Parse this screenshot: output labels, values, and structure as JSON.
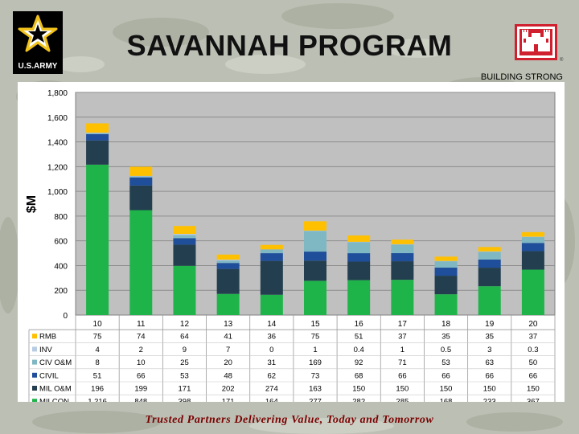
{
  "page": {
    "title": "SAVANNAH PROGRAM",
    "army_logo_text": "U.S.ARMY",
    "tagline": "BUILDING STRONG",
    "footer": "Trusted Partners Delivering Value, Today and Tomorrow",
    "reg_mark": "®"
  },
  "chart_data": {
    "type": "bar",
    "stacked": true,
    "ylabel": "$M",
    "ylim": [
      0,
      1800
    ],
    "yticks": [
      0,
      200,
      400,
      600,
      800,
      1000,
      1200,
      1400,
      1600,
      1800
    ],
    "ytick_labels": [
      "0",
      "200",
      "400",
      "600",
      "800",
      "1,000",
      "1,200",
      "1,400",
      "1,600",
      "1,800"
    ],
    "categories": [
      "10",
      "11",
      "12",
      "13",
      "14",
      "15",
      "16",
      "17",
      "18",
      "19",
      "20"
    ],
    "grid": true,
    "legend_placement": "data-table-left",
    "series": [
      {
        "name": "RMB",
        "color": "#ffc000",
        "values": [
          75,
          74,
          64,
          41,
          36,
          75,
          51,
          37,
          35,
          35,
          37
        ],
        "labels": [
          "75",
          "74",
          "64",
          "41",
          "36",
          "75",
          "51",
          "37",
          "35",
          "35",
          "37"
        ]
      },
      {
        "name": "INV",
        "color": "#b8cce4",
        "values": [
          4,
          2,
          9,
          7,
          0,
          1,
          0.4,
          1,
          0.5,
          3,
          0.3
        ],
        "labels": [
          "4",
          "2",
          "9",
          "7",
          "0",
          "1",
          "0.4",
          "1",
          "0.5",
          "3",
          "0.3"
        ]
      },
      {
        "name": "CIV O&M",
        "color": "#7fb7c3",
        "values": [
          8,
          10,
          25,
          20,
          31,
          169,
          92,
          71,
          53,
          63,
          50
        ],
        "labels": [
          "8",
          "10",
          "25",
          "20",
          "31",
          "169",
          "92",
          "71",
          "53",
          "63",
          "50"
        ]
      },
      {
        "name": "CIVIL",
        "color": "#1f4e9a",
        "values": [
          51,
          66,
          53,
          48,
          62,
          73,
          68,
          66,
          66,
          66,
          66
        ],
        "labels": [
          "51",
          "66",
          "53",
          "48",
          "62",
          "73",
          "68",
          "66",
          "66",
          "66",
          "66"
        ]
      },
      {
        "name": "MIL O&M",
        "color": "#233f4f",
        "values": [
          196,
          199,
          171,
          202,
          274,
          163,
          150,
          150,
          150,
          150,
          150
        ],
        "labels": [
          "196",
          "199",
          "171",
          "202",
          "274",
          "163",
          "150",
          "150",
          "150",
          "150",
          "150"
        ]
      },
      {
        "name": "MILCON",
        "color": "#1fb44a",
        "values": [
          1216,
          848,
          398,
          171,
          164,
          277,
          282,
          285,
          168,
          233,
          367
        ],
        "labels": [
          "1,216",
          "848",
          "398",
          "171",
          "164",
          "277",
          "282",
          "285",
          "168",
          "233",
          "367"
        ]
      }
    ]
  }
}
